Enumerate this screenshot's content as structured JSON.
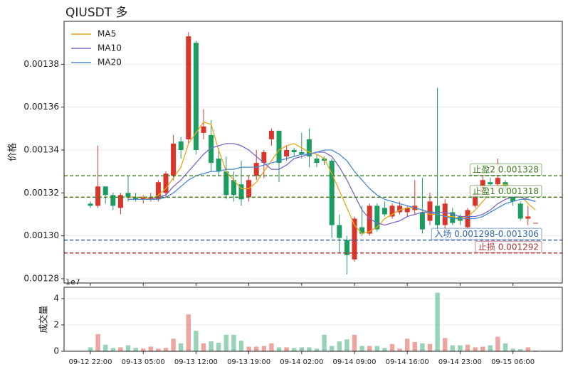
{
  "chart_data": [
    {
      "type": "candlestick",
      "title": "QIUSDT  多",
      "ylabel": "价格",
      "x": [
        "09-12 22:00",
        "09-12 23:00",
        "09-13 00:00",
        "09-13 01:00",
        "09-13 02:00",
        "09-13 03:00",
        "09-13 04:00",
        "09-13 05:00",
        "09-13 06:00",
        "09-13 07:00",
        "09-13 08:00",
        "09-13 09:00",
        "09-13 10:00",
        "09-13 11:00",
        "09-13 12:00",
        "09-13 13:00",
        "09-13 14:00",
        "09-13 15:00",
        "09-13 16:00",
        "09-13 17:00",
        "09-13 18:00",
        "09-13 19:00",
        "09-13 20:00",
        "09-13 21:00",
        "09-13 22:00",
        "09-13 23:00",
        "09-14 00:00",
        "09-14 01:00",
        "09-14 02:00",
        "09-14 03:00",
        "09-14 04:00",
        "09-14 05:00",
        "09-14 06:00",
        "09-14 07:00",
        "09-14 08:00",
        "09-14 09:00",
        "09-14 10:00",
        "09-14 11:00",
        "09-14 12:00",
        "09-14 13:00",
        "09-14 14:00",
        "09-14 15:00",
        "09-14 16:00",
        "09-14 17:00",
        "09-14 18:00",
        "09-14 19:00",
        "09-14 20:00",
        "09-14 21:00",
        "09-14 22:00",
        "09-14 23:00",
        "09-15 00:00",
        "09-15 01:00",
        "09-15 02:00",
        "09-15 03:00",
        "09-15 04:00",
        "09-15 05:00",
        "09-15 06:00",
        "09-15 07:00",
        "09-15 08:00",
        "09-15 09:00"
      ],
      "open": [
        0.001315,
        0.001314,
        0.001323,
        0.001319,
        0.001313,
        0.00132,
        0.001318,
        0.001317,
        0.001317,
        0.001317,
        0.00132,
        0.001328,
        0.001344,
        0.001345,
        0.00139,
        0.001348,
        0.001347,
        0.001336,
        0.00133,
        0.001326,
        0.001324,
        0.001318,
        0.001328,
        0.001334,
        0.001345,
        0.001349,
        0.001337,
        0.00134,
        0.001339,
        0.001345,
        0.001336,
        0.001336,
        0.001335,
        0.001305,
        0.001298,
        0.001289,
        0.001304,
        0.001301,
        0.001314,
        0.001313,
        0.001309,
        0.001311,
        0.001311,
        0.001312,
        0.001311,
        0.001307,
        0.001314,
        0.001305,
        0.001311,
        0.001309,
        0.001304,
        0.001314,
        0.00132,
        0.001325,
        0.001324,
        0.001325,
        0.001318,
        0.001315,
        0.001308,
        0.001306
      ],
      "high": [
        0.001316,
        0.001342,
        0.001323,
        0.00132,
        0.00132,
        0.001328,
        0.00132,
        0.001319,
        0.00132,
        0.001326,
        0.00133,
        0.001347,
        0.001346,
        0.001395,
        0.001391,
        0.001359,
        0.001354,
        0.001341,
        0.001337,
        0.00133,
        0.001335,
        0.001328,
        0.00134,
        0.00134,
        0.00135,
        0.001349,
        0.001342,
        0.001341,
        0.001348,
        0.00135,
        0.001338,
        0.001337,
        0.001336,
        0.00131,
        0.0013,
        0.001309,
        0.001314,
        0.001315,
        0.001315,
        0.001316,
        0.001315,
        0.001316,
        0.001314,
        0.001326,
        0.001327,
        0.00132,
        0.001369,
        0.001317,
        0.001313,
        0.00131,
        0.001313,
        0.001321,
        0.00133,
        0.001327,
        0.001336,
        0.001326,
        0.00132,
        0.001316,
        0.001314,
        0.001306
      ],
      "low": [
        0.001313,
        0.001313,
        0.001315,
        0.001312,
        0.00131,
        0.001316,
        0.001316,
        0.001315,
        0.001316,
        0.001316,
        0.001318,
        0.001326,
        0.001336,
        0.001343,
        0.001338,
        0.001345,
        0.00133,
        0.001328,
        0.001317,
        0.001316,
        0.001314,
        0.001316,
        0.001326,
        0.001327,
        0.001342,
        0.001325,
        0.001335,
        0.001337,
        0.001336,
        0.001332,
        0.001332,
        0.001333,
        0.001299,
        0.001292,
        0.001282,
        0.001288,
        0.0013,
        0.0013,
        0.001302,
        0.001309,
        0.001308,
        0.00131,
        0.001309,
        0.00131,
        0.001301,
        0.001305,
        0.001301,
        0.001299,
        0.001305,
        0.001305,
        0.001302,
        0.001313,
        0.001319,
        0.001322,
        0.001322,
        0.00132,
        0.001314,
        0.001307,
        0.001305,
        0.001306
      ],
      "close": [
        0.001314,
        0.001323,
        0.001319,
        0.001314,
        0.001319,
        0.001318,
        0.001317,
        0.001318,
        0.001318,
        0.001325,
        0.001329,
        0.001343,
        0.00134,
        0.001393,
        0.00134,
        0.001351,
        0.001334,
        0.00133,
        0.001319,
        0.001319,
        0.001317,
        0.001326,
        0.001334,
        0.001339,
        0.001349,
        0.001334,
        0.00134,
        0.001339,
        0.001338,
        0.001337,
        0.001334,
        0.001335,
        0.001305,
        0.001299,
        0.001291,
        0.001308,
        0.001301,
        0.001314,
        0.001303,
        0.00131,
        0.001314,
        0.001314,
        0.001313,
        0.001314,
        0.001303,
        0.001316,
        0.001305,
        0.001315,
        0.001306,
        0.001307,
        0.001312,
        0.00132,
        0.001326,
        0.001324,
        0.001327,
        0.001321,
        0.001316,
        0.001308,
        0.001309,
        0.001306
      ],
      "up_color": "#d9352b",
      "down_color": "#1a9d5f",
      "series": [
        {
          "name": "MA5",
          "color": "#e6a817",
          "values": [
            null,
            null,
            null,
            null,
            null,
            0.001318,
            0.001318,
            0.001318,
            0.001317,
            0.001319,
            0.001322,
            0.001327,
            0.001332,
            0.001343,
            0.001348,
            0.001353,
            0.001352,
            0.00134,
            0.00133,
            0.001326,
            0.001322,
            0.001322,
            0.001325,
            0.00133,
            0.001335,
            0.00134,
            0.001342,
            0.001343,
            0.001341,
            0.001339,
            0.001338,
            0.001336,
            0.001329,
            0.001321,
            0.001313,
            0.001305,
            0.001301,
            0.001302,
            0.001304,
            0.001308,
            0.00131,
            0.001312,
            0.001313,
            0.001313,
            0.001312,
            0.00131,
            0.00131,
            0.001309,
            0.001309,
            0.001308,
            0.001309,
            0.001312,
            0.001316,
            0.00132,
            0.001323,
            0.001324,
            0.001322,
            0.001319,
            0.001315,
            0.001312
          ]
        },
        {
          "name": "MA10",
          "color": "#7b68c8",
          "values": [
            null,
            null,
            null,
            null,
            null,
            0.001317,
            0.001317,
            0.001317,
            0.001317,
            0.001318,
            0.001319,
            0.001323,
            0.001326,
            0.00133,
            0.001334,
            0.001338,
            0.001341,
            0.001342,
            0.001343,
            0.001343,
            0.001342,
            0.00134,
            0.001337,
            0.001334,
            0.001331,
            0.001331,
            0.001333,
            0.001336,
            0.001337,
            0.001338,
            0.001339,
            0.001339,
            0.001337,
            0.001332,
            0.001326,
            0.001319,
            0.001312,
            0.001308,
            0.001306,
            0.001305,
            0.001306,
            0.001307,
            0.001309,
            0.00131,
            0.001311,
            0.001311,
            0.001311,
            0.001311,
            0.00131,
            0.001309,
            0.001309,
            0.001309,
            0.00131,
            0.001312,
            0.001315,
            0.001317,
            0.001318,
            0.001318,
            0.001317,
            0.001316
          ]
        },
        {
          "name": "MA20",
          "color": "#4a8ad4",
          "values": [
            null,
            null,
            null,
            null,
            null,
            0.001317,
            0.001317,
            0.001317,
            0.001317,
            0.001317,
            0.001318,
            0.00132,
            0.001323,
            0.001326,
            0.001328,
            0.001329,
            0.00133,
            0.00133,
            0.001331,
            0.001331,
            0.001332,
            0.001332,
            0.001332,
            0.001333,
            0.001334,
            0.001335,
            0.001336,
            0.001337,
            0.001338,
            0.001338,
            0.001339,
            0.00134,
            0.00134,
            0.001338,
            0.001335,
            0.00133,
            0.001326,
            0.001322,
            0.001319,
            0.001317,
            0.001316,
            0.001315,
            0.001314,
            0.001313,
            0.001312,
            0.001311,
            0.00131,
            0.001309,
            0.001308,
            0.001308,
            0.001308,
            0.001308,
            0.001309,
            0.001311,
            0.001313,
            0.001315,
            0.001316,
            0.001317,
            0.001317,
            0.001316
          ]
        }
      ],
      "levels": [
        {
          "label": "止盈2 0.001328",
          "value": 0.001328,
          "color": "#3c7a1e"
        },
        {
          "label": "止盈1 0.001318",
          "value": 0.001318,
          "color": "#3c7a1e"
        },
        {
          "label": "入场 0.001298-0.001306",
          "value": 0.001298,
          "color": "#2e64a8"
        },
        {
          "label": "止损 0.001292",
          "value": 0.001292,
          "color": "#b03030"
        }
      ],
      "ylim": [
        0.001278,
        0.0014
      ],
      "yticks": [
        0.00128,
        {
          "value": 0.0013,
          "label": "0.00130"
        },
        0.00132,
        0.00134,
        0.00136,
        0.00138
      ],
      "legend": "upper left",
      "grid": true
    },
    {
      "type": "bar",
      "ylabel": "成交量",
      "scale_label": "1e7",
      "values": [
        0.3,
        1.3,
        0.5,
        0.25,
        0.3,
        0.45,
        0.25,
        0.2,
        0.35,
        0.2,
        0.25,
        0.95,
        0.6,
        2.8,
        1.55,
        0.6,
        0.75,
        0.65,
        1.25,
        1.25,
        0.8,
        0.35,
        0.35,
        0.4,
        0.6,
        0.3,
        0.3,
        0.25,
        0.3,
        0.3,
        0.2,
        1.25,
        0.4,
        0.75,
        0.9,
        1.25,
        0.4,
        0.4,
        0.4,
        0.25,
        0.55,
        0.2,
        0.95,
        0.7,
        0.6,
        0.55,
        4.45,
        1.0,
        0.45,
        0.45,
        0.5,
        0.3,
        0.35,
        0.45,
        1.1,
        0.6,
        0.2,
        0.15,
        0.3,
        0.05
      ],
      "ylim": [
        0,
        4.86
      ],
      "yticks": [
        0,
        2,
        4
      ],
      "xticks": [
        "09-12 22:00",
        "09-13 05:00",
        "09-13 12:00",
        "09-13 19:00",
        "09-14 02:00",
        "09-14 09:00",
        "09-14 16:00",
        "09-14 23:00",
        "09-15 06:00"
      ],
      "grid": true
    }
  ]
}
